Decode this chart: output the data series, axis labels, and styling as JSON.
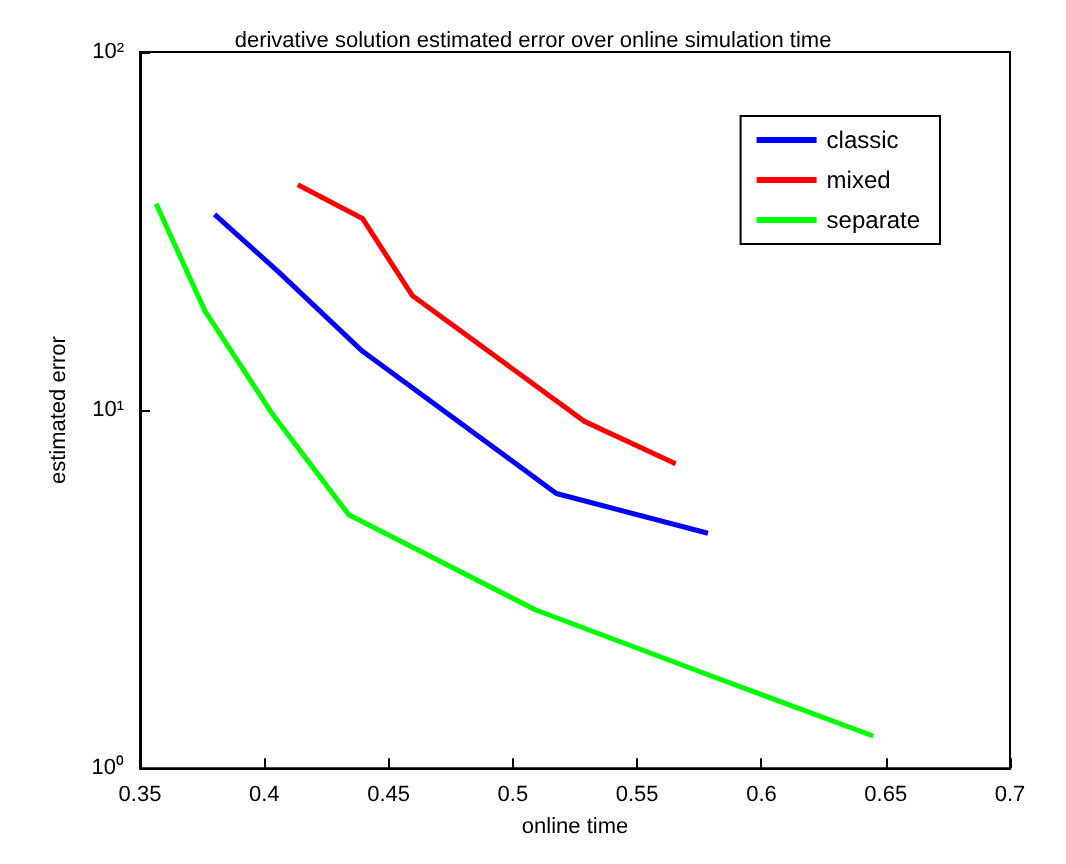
{
  "chart_data": {
    "type": "line",
    "title": "derivative solution estimated error over online simulation time",
    "xlabel": "online time",
    "ylabel": "estimated error",
    "xlim": [
      0.35,
      0.7
    ],
    "xticks": [
      0.35,
      0.4,
      0.45,
      0.5,
      0.55,
      0.6,
      0.65,
      0.7
    ],
    "ylim": [
      1,
      100
    ],
    "yticks": [
      {
        "value": 1,
        "label": "10⁰"
      },
      {
        "value": 10,
        "label": "10¹"
      },
      {
        "value": 100,
        "label": "10²"
      }
    ],
    "log": "y",
    "grid": false,
    "legend": "top right",
    "marker": "none",
    "line_style": "solid",
    "series": [
      {
        "name": "classic",
        "color": "#0000ff",
        "x": [
          0.38,
          0.4055,
          0.439,
          0.5175,
          0.5785
        ],
        "values": [
          35.2,
          24.4,
          14.7,
          5.85,
          4.53
        ]
      },
      {
        "name": "mixed",
        "color": "#ff0000",
        "x": [
          0.4135,
          0.4395,
          0.4595,
          0.5288,
          0.5655
        ],
        "values": [
          42.6,
          34.3,
          20.9,
          9.3,
          7.08
        ]
      },
      {
        "name": "separate",
        "color": "#00ff00",
        "x": [
          0.3565,
          0.376,
          0.4035,
          0.434,
          0.509,
          0.578,
          0.645
        ],
        "values": [
          37.7,
          19,
          9.7,
          5.1,
          2.77,
          1.83,
          1.23
        ]
      }
    ]
  }
}
